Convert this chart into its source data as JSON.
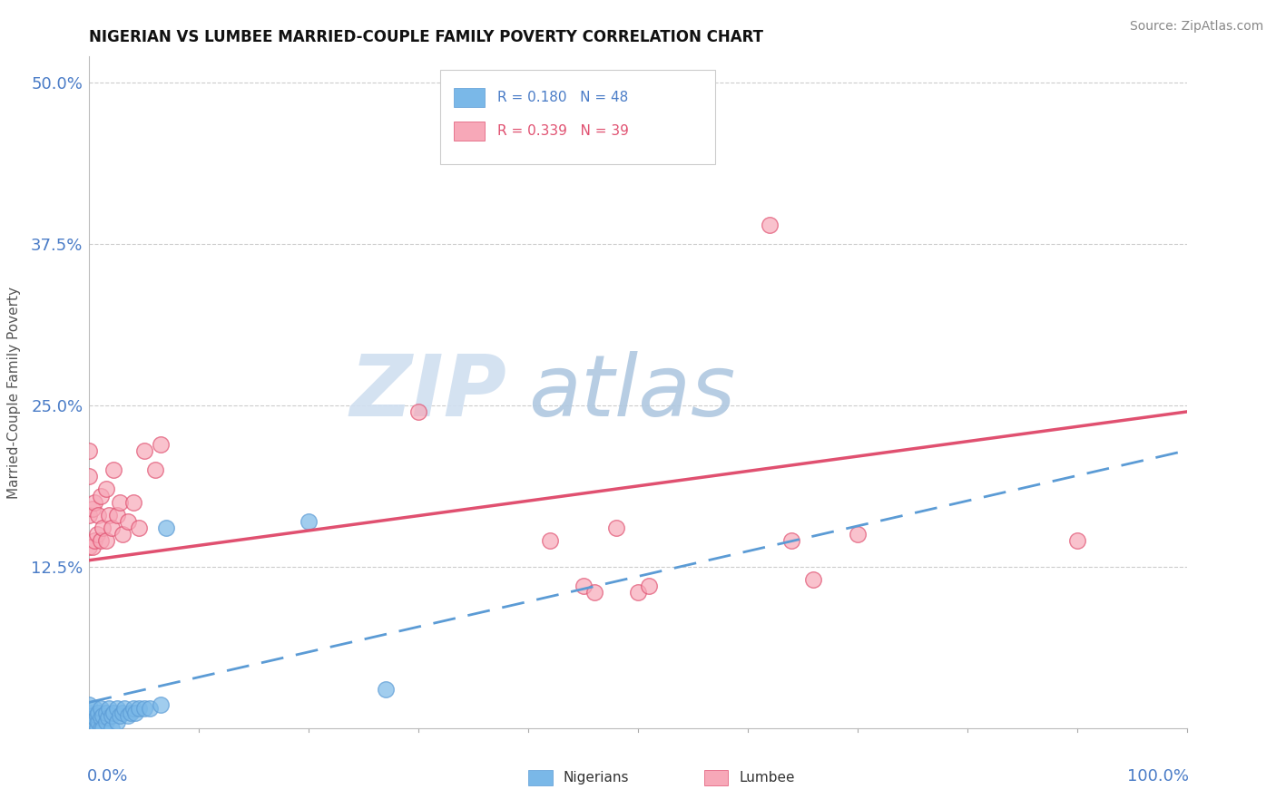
{
  "title": "NIGERIAN VS LUMBEE MARRIED-COUPLE FAMILY POVERTY CORRELATION CHART",
  "source": "Source: ZipAtlas.com",
  "ylabel": "Married-Couple Family Poverty",
  "xlim": [
    0.0,
    1.0
  ],
  "ylim": [
    0.0,
    0.52
  ],
  "yticks": [
    0.0,
    0.125,
    0.25,
    0.375,
    0.5
  ],
  "ytick_labels": [
    "",
    "12.5%",
    "25.0%",
    "37.5%",
    "50.0%"
  ],
  "nigerian_color": "#7ab8e8",
  "lumbee_color": "#f7a8b8",
  "nigerian_line_color": "#5b9bd5",
  "lumbee_line_color": "#e05070",
  "grid_color": "#cccccc",
  "watermark_zip_color": "#d8e4f0",
  "watermark_atlas_color": "#b8cce0",
  "nigerian_points_x": [
    0.0,
    0.0,
    0.0,
    0.0,
    0.0,
    0.0,
    0.0,
    0.0,
    0.0,
    0.0,
    0.003,
    0.003,
    0.003,
    0.005,
    0.005,
    0.005,
    0.007,
    0.007,
    0.008,
    0.008,
    0.01,
    0.01,
    0.01,
    0.012,
    0.012,
    0.015,
    0.015,
    0.017,
    0.018,
    0.02,
    0.02,
    0.022,
    0.025,
    0.025,
    0.028,
    0.03,
    0.032,
    0.035,
    0.038,
    0.04,
    0.042,
    0.045,
    0.05,
    0.055,
    0.065,
    0.07,
    0.2,
    0.27
  ],
  "nigerian_points_y": [
    0.0,
    0.0,
    0.0,
    0.0,
    0.0,
    0.0,
    0.005,
    0.008,
    0.012,
    0.018,
    0.0,
    0.005,
    0.01,
    0.0,
    0.008,
    0.015,
    0.0,
    0.01,
    0.005,
    0.012,
    0.0,
    0.008,
    0.015,
    0.0,
    0.01,
    0.005,
    0.012,
    0.008,
    0.015,
    0.0,
    0.01,
    0.012,
    0.005,
    0.015,
    0.01,
    0.012,
    0.015,
    0.01,
    0.012,
    0.015,
    0.012,
    0.015,
    0.015,
    0.015,
    0.018,
    0.155,
    0.16,
    0.03
  ],
  "lumbee_points_x": [
    0.0,
    0.0,
    0.0,
    0.0,
    0.003,
    0.003,
    0.005,
    0.005,
    0.007,
    0.008,
    0.01,
    0.01,
    0.012,
    0.015,
    0.015,
    0.018,
    0.02,
    0.022,
    0.025,
    0.028,
    0.03,
    0.035,
    0.04,
    0.045,
    0.05,
    0.06,
    0.065,
    0.3,
    0.42,
    0.45,
    0.46,
    0.48,
    0.5,
    0.51,
    0.64,
    0.66,
    0.7,
    0.9,
    0.62
  ],
  "lumbee_points_y": [
    0.14,
    0.165,
    0.195,
    0.215,
    0.14,
    0.17,
    0.145,
    0.175,
    0.15,
    0.165,
    0.145,
    0.18,
    0.155,
    0.145,
    0.185,
    0.165,
    0.155,
    0.2,
    0.165,
    0.175,
    0.15,
    0.16,
    0.175,
    0.155,
    0.215,
    0.2,
    0.22,
    0.245,
    0.145,
    0.11,
    0.105,
    0.155,
    0.105,
    0.11,
    0.145,
    0.115,
    0.15,
    0.145,
    0.39
  ],
  "nig_line_x0": 0.0,
  "nig_line_y0": 0.02,
  "nig_line_x1": 1.0,
  "nig_line_y1": 0.215,
  "lum_line_x0": 0.0,
  "lum_line_y0": 0.13,
  "lum_line_x1": 1.0,
  "lum_line_y1": 0.245
}
